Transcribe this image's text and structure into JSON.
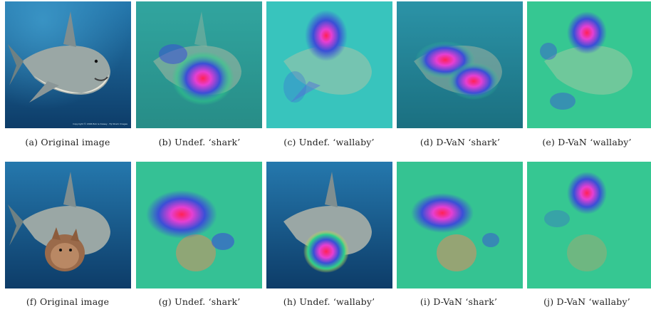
{
  "figure": {
    "rows": [
      {
        "panels": [
          {
            "caption": "(a) Original image",
            "kind": "original",
            "wallaby": false,
            "heatmap": "none"
          },
          {
            "caption": "(b) Undef. ‘shark’",
            "kind": "heatmap",
            "wallaby": false,
            "heatmap": "shark-body"
          },
          {
            "caption": "(c) Undef. ‘wallaby’",
            "kind": "heatmap",
            "wallaby": false,
            "heatmap": "fin-spot"
          },
          {
            "caption": "(d) D-VaN ‘shark’",
            "kind": "heatmap",
            "wallaby": false,
            "heatmap": "shark-body-wide"
          },
          {
            "caption": "(e) D-VaN ‘wallaby’",
            "kind": "heatmap",
            "wallaby": false,
            "heatmap": "fin-spot-small"
          }
        ]
      },
      {
        "panels": [
          {
            "caption": "(f) Original image",
            "kind": "original",
            "wallaby": true,
            "heatmap": "none"
          },
          {
            "caption": "(g) Undef. ‘shark’",
            "kind": "heatmap",
            "wallaby": true,
            "heatmap": "shark-upper"
          },
          {
            "caption": "(h) Undef. ‘wallaby’",
            "kind": "heatmap",
            "wallaby": true,
            "heatmap": "wallaby-spot"
          },
          {
            "caption": "(i) D-VaN ‘shark’",
            "kind": "heatmap",
            "wallaby": true,
            "heatmap": "shark-upper"
          },
          {
            "caption": "(j) D-VaN ‘wallaby’",
            "kind": "heatmap",
            "wallaby": true,
            "heatmap": "fin-spot-small"
          }
        ]
      }
    ],
    "colors": {
      "ocean_top": "#1f6fa3",
      "ocean_bottom": "#0e3f6e",
      "heat_green": "#2fd08a",
      "heat_blue": "#3a4fd6",
      "heat_magenta": "#e63fd2",
      "heat_red": "#ff2255"
    }
  }
}
